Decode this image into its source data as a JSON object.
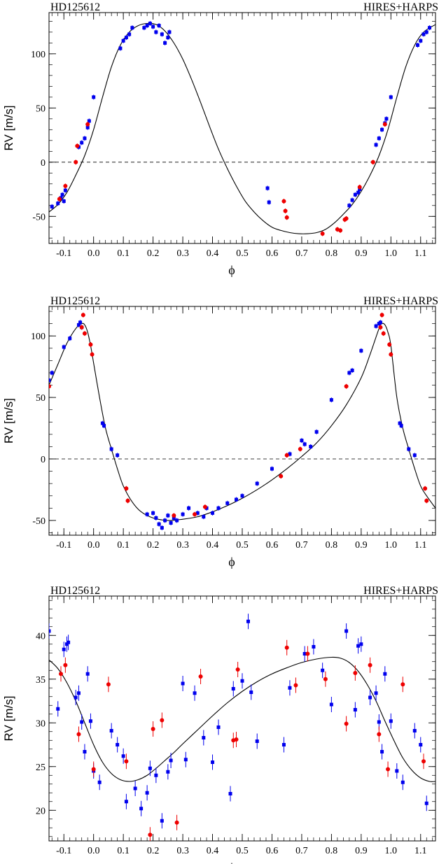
{
  "chart_data": [
    {
      "type": "scatter",
      "title_left": "HD125612",
      "title_right": "HIRES+HARPS",
      "xlabel": "ϕ",
      "ylabel": "RV [m/s]",
      "xlim": [
        -0.15,
        1.15
      ],
      "ylim": [
        -75,
        138
      ],
      "xticks": [
        -0.1,
        0.0,
        0.1,
        0.2,
        0.3,
        0.4,
        0.5,
        0.6,
        0.7,
        0.8,
        0.9,
        1.0,
        1.1
      ],
      "xticklabels": [
        "-0.1",
        "0.0",
        "0.1",
        "0.2",
        "0.3",
        "0.4",
        "0.5",
        "0.6",
        "0.7",
        "0.8",
        "0.9",
        "1.0",
        "1.1"
      ],
      "yticks": [
        -50,
        0,
        50,
        100
      ],
      "yticklabels": [
        "-50",
        "0",
        "50",
        "100"
      ],
      "zero_line": 0,
      "grid": false,
      "model": {
        "x": [
          -0.15,
          -0.12,
          -0.09,
          -0.06,
          -0.03,
          0.0,
          0.03,
          0.06,
          0.09,
          0.12,
          0.15,
          0.18,
          0.21,
          0.24,
          0.27,
          0.3,
          0.33,
          0.36,
          0.39,
          0.42,
          0.45,
          0.48,
          0.51,
          0.54,
          0.57,
          0.6,
          0.63,
          0.66,
          0.69,
          0.72,
          0.75,
          0.78,
          0.81,
          0.84,
          0.87,
          0.9,
          0.93,
          0.96,
          0.99,
          1.02,
          1.05,
          1.08,
          1.11,
          1.15
        ],
        "y": [
          -46,
          -39,
          -28,
          -12,
          6,
          30,
          60,
          88,
          108,
          120,
          126,
          128,
          127,
          121,
          110,
          95,
          76,
          55,
          33,
          12,
          -6,
          -22,
          -36,
          -46,
          -54,
          -60,
          -63,
          -65,
          -66,
          -66,
          -65,
          -62,
          -56,
          -48,
          -39,
          -27,
          -12,
          6,
          30,
          60,
          88,
          108,
          120,
          127
        ]
      },
      "series": [
        {
          "color": "#0000ee",
          "marker": "square",
          "x": [
            -0.14,
            -0.12,
            -0.11,
            -0.105,
            -0.1,
            -0.095,
            -0.05,
            -0.04,
            -0.03,
            -0.02,
            -0.015,
            0.0,
            0.09,
            0.1,
            0.11,
            0.12,
            0.13,
            0.17,
            0.18,
            0.19,
            0.2,
            0.21,
            0.22,
            0.23,
            0.24,
            0.25,
            0.255,
            0.585,
            0.59,
            0.86,
            0.87,
            0.88,
            0.89,
            0.895,
            0.95,
            0.96,
            0.97,
            0.98,
            0.985,
            1.0,
            1.09,
            1.1,
            1.11,
            1.12,
            1.13
          ],
          "y": [
            -41,
            -38,
            -33,
            -30,
            -36,
            -26,
            14,
            18,
            22,
            32,
            38,
            60,
            105,
            112,
            115,
            118,
            124,
            124,
            126,
            128,
            125,
            120,
            126,
            118,
            110,
            115,
            120,
            -24,
            -37,
            -40,
            -35,
            -30,
            -28,
            -25,
            16,
            22,
            30,
            36,
            40,
            60,
            108,
            112,
            118,
            120,
            124
          ]
        },
        {
          "color": "#ee0000",
          "marker": "circle",
          "x": [
            -0.115,
            -0.095,
            -0.06,
            -0.055,
            -0.02,
            0.64,
            0.645,
            0.65,
            0.77,
            0.82,
            0.83,
            0.845,
            0.85,
            0.895,
            0.94,
            0.98
          ],
          "y": [
            -34,
            -22,
            0,
            15,
            35,
            -36,
            -45,
            -51,
            -66,
            -62,
            -63,
            -53,
            -52,
            -23,
            0,
            35
          ]
        }
      ]
    },
    {
      "type": "scatter",
      "title_left": "HD125612",
      "title_right": "HIRES+HARPS",
      "xlabel": "ϕ",
      "ylabel": "RV [m/s]",
      "xlim": [
        -0.15,
        1.15
      ],
      "ylim": [
        -62,
        124
      ],
      "xticks": [
        -0.1,
        0.0,
        0.1,
        0.2,
        0.3,
        0.4,
        0.5,
        0.6,
        0.7,
        0.8,
        0.9,
        1.0,
        1.1
      ],
      "xticklabels": [
        "-0.1",
        "0.0",
        "0.1",
        "0.2",
        "0.3",
        "0.4",
        "0.5",
        "0.6",
        "0.7",
        "0.8",
        "0.9",
        "1.0",
        "1.1"
      ],
      "yticks": [
        -50,
        0,
        50,
        100
      ],
      "yticklabels": [
        "-50",
        "0",
        "50",
        "100"
      ],
      "zero_line": 0,
      "grid": false,
      "model": {
        "x": [
          -0.15,
          -0.12,
          -0.09,
          -0.06,
          -0.04,
          -0.03,
          -0.02,
          -0.01,
          0.0,
          0.02,
          0.04,
          0.06,
          0.08,
          0.1,
          0.13,
          0.16,
          0.2,
          0.25,
          0.3,
          0.35,
          0.4,
          0.45,
          0.5,
          0.55,
          0.6,
          0.65,
          0.7,
          0.75,
          0.8,
          0.85,
          0.9,
          0.93,
          0.96,
          0.97,
          0.98,
          0.99,
          1.0,
          1.02,
          1.04,
          1.06,
          1.08,
          1.1,
          1.12,
          1.15
        ],
        "y": [
          60,
          77,
          94,
          106,
          110,
          109,
          103,
          92,
          78,
          50,
          25,
          8,
          -8,
          -22,
          -35,
          -43,
          -48,
          -50,
          -49,
          -47,
          -43,
          -38,
          -32,
          -25,
          -17,
          -8,
          2,
          13,
          27,
          44,
          66,
          85,
          106,
          110,
          109,
          103,
          92,
          50,
          25,
          8,
          -8,
          -22,
          -30,
          -40
        ]
      },
      "series": [
        {
          "color": "#0000ee",
          "marker": "square",
          "x": [
            -0.15,
            -0.14,
            -0.1,
            -0.08,
            -0.05,
            -0.045,
            -0.04,
            0.03,
            0.035,
            0.06,
            0.08,
            0.18,
            0.2,
            0.21,
            0.22,
            0.23,
            0.24,
            0.25,
            0.26,
            0.27,
            0.28,
            0.3,
            0.32,
            0.35,
            0.37,
            0.38,
            0.4,
            0.42,
            0.45,
            0.48,
            0.5,
            0.55,
            0.6,
            0.66,
            0.7,
            0.71,
            0.73,
            0.75,
            0.8,
            0.86,
            0.87,
            0.9,
            0.95,
            0.96,
            0.965,
            1.03,
            1.035,
            1.06,
            1.08
          ],
          "y": [
            64,
            70,
            91,
            98,
            109,
            111,
            107,
            29,
            27,
            8,
            3,
            -45,
            -44,
            -48,
            -53,
            -56,
            -50,
            -46,
            -52,
            -48,
            -50,
            -45,
            -40,
            -44,
            -47,
            -40,
            -44,
            -40,
            -36,
            -33,
            -30,
            -20,
            -8,
            4,
            15,
            12,
            10,
            22,
            48,
            70,
            72,
            88,
            108,
            110,
            111,
            29,
            27,
            8,
            3
          ]
        },
        {
          "color": "#ee0000",
          "marker": "circle",
          "x": [
            -0.15,
            -0.04,
            -0.035,
            -0.03,
            -0.01,
            -0.005,
            0.11,
            0.115,
            0.27,
            0.34,
            0.375,
            0.63,
            0.65,
            0.695,
            0.85,
            0.965,
            0.97,
            0.975,
            0.995,
            1.0,
            1.115,
            1.12
          ],
          "y": [
            59,
            107,
            117,
            102,
            93,
            85,
            -24,
            -34,
            -46,
            -45,
            -39,
            -14,
            3,
            8,
            59,
            107,
            117,
            102,
            93,
            85,
            -24,
            -34
          ]
        }
      ]
    },
    {
      "type": "scatter",
      "title_left": "HD125612",
      "title_right": "HIRES+HARPS",
      "xlabel": "ϕ",
      "ylabel": "RV [m/s]",
      "xlim": [
        -0.15,
        1.15
      ],
      "ylim": [
        16.5,
        44.5
      ],
      "xticks": [
        -0.1,
        0.0,
        0.1,
        0.2,
        0.3,
        0.4,
        0.5,
        0.6,
        0.7,
        0.8,
        0.9,
        1.0,
        1.1
      ],
      "xticklabels": [
        "-0.1",
        "0.0",
        "0.1",
        "0.2",
        "0.3",
        "0.4",
        "0.5",
        "0.6",
        "0.7",
        "0.8",
        "0.9",
        "1.0",
        "1.1"
      ],
      "yticks": [
        20,
        25,
        30,
        35,
        40
      ],
      "yticklabels": [
        "20",
        "25",
        "30",
        "35",
        "40"
      ],
      "zero_line": null,
      "grid": false,
      "model": {
        "x": [
          -0.15,
          -0.12,
          -0.09,
          -0.06,
          -0.03,
          0.0,
          0.03,
          0.06,
          0.09,
          0.12,
          0.15,
          0.18,
          0.21,
          0.24,
          0.27,
          0.3,
          0.35,
          0.4,
          0.45,
          0.5,
          0.55,
          0.6,
          0.65,
          0.7,
          0.75,
          0.8,
          0.83,
          0.86,
          0.89,
          0.92,
          0.95,
          0.98,
          1.01,
          1.04,
          1.07,
          1.1,
          1.13,
          1.15
        ],
        "y": [
          37.2,
          36.2,
          34.6,
          32.5,
          30.0,
          27.5,
          25.5,
          24.2,
          23.5,
          23.3,
          23.5,
          24.0,
          24.8,
          25.7,
          26.6,
          27.6,
          29.2,
          30.8,
          32.3,
          33.6,
          34.7,
          35.6,
          36.3,
          36.9,
          37.3,
          37.5,
          37.4,
          36.9,
          35.9,
          34.4,
          32.5,
          30.2,
          28.0,
          26.0,
          24.6,
          23.7,
          23.3,
          23.3
        ]
      },
      "series": [
        {
          "color": "#0000ee",
          "marker": "square",
          "x": [
            -0.15,
            -0.12,
            -0.1,
            -0.09,
            -0.085,
            -0.06,
            -0.05,
            -0.04,
            -0.03,
            -0.02,
            -0.01,
            0.0,
            0.02,
            0.06,
            0.08,
            0.1,
            0.11,
            0.14,
            0.16,
            0.18,
            0.19,
            0.21,
            0.23,
            0.25,
            0.26,
            0.3,
            0.31,
            0.34,
            0.37,
            0.4,
            0.42,
            0.46,
            0.47,
            0.5,
            0.52,
            0.53,
            0.55,
            0.64,
            0.66,
            0.71,
            0.74,
            0.77,
            0.8,
            0.85,
            0.88,
            0.89,
            0.9,
            0.93,
            0.95,
            0.96,
            0.97,
            0.98,
            1.0,
            1.02,
            1.04,
            1.08,
            1.1,
            1.12
          ],
          "y": [
            40.5,
            31.6,
            38.4,
            39.0,
            39.2,
            32.9,
            33.4,
            30.1,
            26.7,
            35.6,
            30.2,
            24.5,
            23.2,
            29.1,
            27.5,
            26.2,
            21.0,
            22.5,
            20.2,
            22.0,
            24.8,
            24.0,
            18.8,
            24.4,
            25.7,
            34.5,
            25.8,
            33.4,
            28.3,
            25.5,
            29.5,
            21.9,
            33.9,
            34.8,
            41.6,
            33.5,
            27.9,
            27.5,
            34.0,
            37.9,
            38.7,
            36.0,
            32.1,
            40.5,
            31.5,
            38.8,
            39.0,
            32.9,
            33.4,
            30.1,
            26.7,
            35.6,
            30.2,
            24.5,
            23.2,
            29.1,
            27.5,
            20.8
          ]
        },
        {
          "color": "#ee0000",
          "marker": "circle",
          "x": [
            -0.11,
            -0.095,
            -0.05,
            0.0,
            0.05,
            0.11,
            0.19,
            0.2,
            0.23,
            0.28,
            0.36,
            0.47,
            0.48,
            0.485,
            0.65,
            0.68,
            0.72,
            0.78,
            0.85,
            0.88,
            0.93,
            0.96,
            0.99,
            1.04,
            1.11
          ],
          "y": [
            35.6,
            36.6,
            28.7,
            24.7,
            34.4,
            25.6,
            17.2,
            29.3,
            30.3,
            18.6,
            35.3,
            28.0,
            28.1,
            36.1,
            38.6,
            34.3,
            37.9,
            35.0,
            29.9,
            35.7,
            36.6,
            28.7,
            24.7,
            34.4,
            25.6
          ]
        }
      ]
    }
  ]
}
